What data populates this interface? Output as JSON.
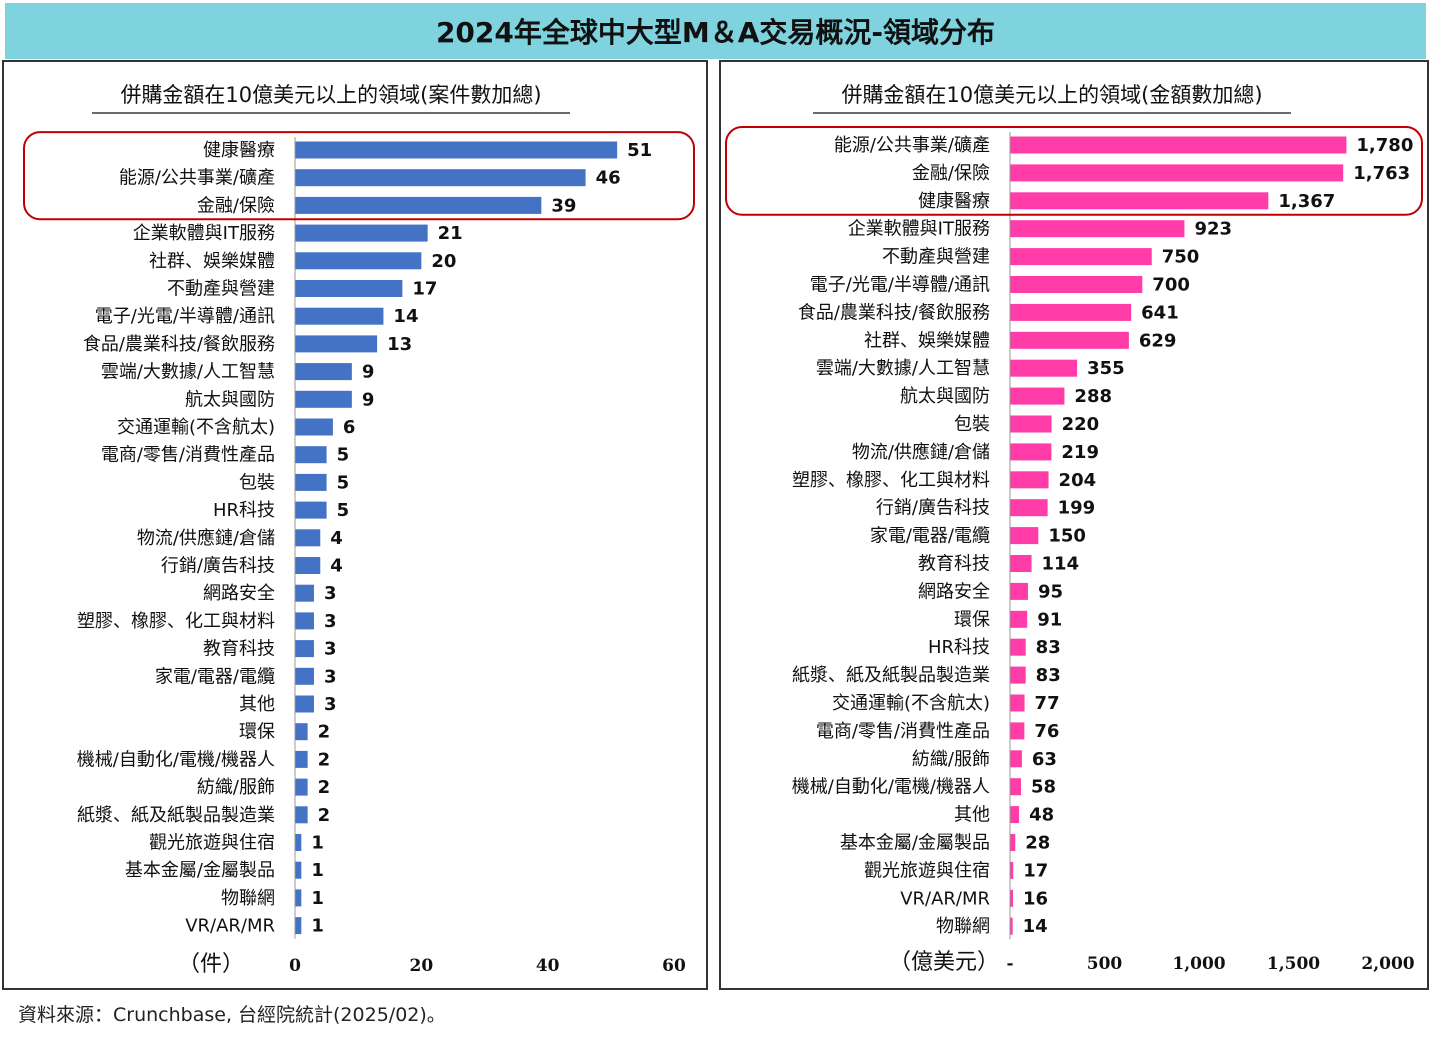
{
  "title": "2024年全球中大型M＆A交易概況-領域分布",
  "source": "資料來源：Crunchbase, 台經院統計(2025/02)。",
  "colors": {
    "left_bar": "#4472c4",
    "right_bar": "#ff3ca8",
    "highlight": "#c00000",
    "title_bg": "#7fd3df"
  },
  "chart_data": [
    {
      "type": "bar",
      "orientation": "horizontal",
      "title": "併購金額在10億美元以上的領域(案件數加總)",
      "unit_label": "（件）",
      "xlim": [
        0,
        60
      ],
      "xticks": [
        "0",
        "20",
        "40",
        "60"
      ],
      "highlighted_top": 3,
      "categories": [
        "健康醫療",
        "能源/公共事業/礦產",
        "金融/保險",
        "企業軟體與IT服務",
        "社群、娛樂媒體",
        "不動產與營建",
        "電子/光電/半導體/通訊",
        "食品/農業科技/餐飲服務",
        "雲端/大數據/人工智慧",
        "航太與國防",
        "交通運輸(不含航太)",
        "電商/零售/消費性產品",
        "包裝",
        "HR科技",
        "物流/供應鏈/倉儲",
        "行銷/廣告科技",
        "網路安全",
        "塑膠、橡膠、化工與材料",
        "教育科技",
        "家電/電器/電纜",
        "其他",
        "環保",
        "機械/自動化/電機/機器人",
        "紡織/服飾",
        "紙漿、紙及紙製品製造業",
        "觀光旅遊與住宿",
        "基本金屬/金屬製品",
        "物聯網",
        "VR/AR/MR"
      ],
      "values": [
        51,
        46,
        39,
        21,
        20,
        17,
        14,
        13,
        9,
        9,
        6,
        5,
        5,
        5,
        4,
        4,
        3,
        3,
        3,
        3,
        3,
        2,
        2,
        2,
        2,
        1,
        1,
        1,
        1
      ],
      "value_labels": [
        "51",
        "46",
        "39",
        "21",
        "20",
        "17",
        "14",
        "13",
        "9",
        "9",
        "6",
        "5",
        "5",
        "5",
        "4",
        "4",
        "3",
        "3",
        "3",
        "3",
        "3",
        "2",
        "2",
        "2",
        "2",
        "1",
        "1",
        "1",
        "1"
      ]
    },
    {
      "type": "bar",
      "orientation": "horizontal",
      "title": "併購金額在10億美元以上的領域(金額數加總)",
      "unit_label": "（億美元）",
      "xlim": [
        0,
        2000
      ],
      "xticks": [
        "-",
        "500",
        "1,000",
        "1,500",
        "2,000"
      ],
      "highlighted_top": 3,
      "categories": [
        "能源/公共事業/礦產",
        "金融/保險",
        "健康醫療",
        "企業軟體與IT服務",
        "不動產與營建",
        "電子/光電/半導體/通訊",
        "食品/農業科技/餐飲服務",
        "社群、娛樂媒體",
        "雲端/大數據/人工智慧",
        "航太與國防",
        "包裝",
        "物流/供應鏈/倉儲",
        "塑膠、橡膠、化工與材料",
        "行銷/廣告科技",
        "家電/電器/電纜",
        "教育科技",
        "網路安全",
        "環保",
        "HR科技",
        "紙漿、紙及紙製品製造業",
        "交通運輸(不含航太)",
        "電商/零售/消費性產品",
        "紡織/服飾",
        "機械/自動化/電機/機器人",
        "其他",
        "基本金屬/金屬製品",
        "觀光旅遊與住宿",
        "VR/AR/MR",
        "物聯網"
      ],
      "values": [
        1780,
        1763,
        1367,
        923,
        750,
        700,
        641,
        629,
        355,
        288,
        220,
        219,
        204,
        199,
        150,
        114,
        95,
        91,
        83,
        83,
        77,
        76,
        63,
        58,
        48,
        28,
        17,
        16,
        14
      ],
      "value_labels": [
        "1,780",
        "1,763",
        "1,367",
        "923",
        "750",
        "700",
        "641",
        "629",
        "355",
        "288",
        "220",
        "219",
        "204",
        "199",
        "150",
        "114",
        "95",
        "91",
        "83",
        "83",
        "77",
        "76",
        "63",
        "58",
        "48",
        "28",
        "17",
        "16",
        "14"
      ]
    }
  ]
}
